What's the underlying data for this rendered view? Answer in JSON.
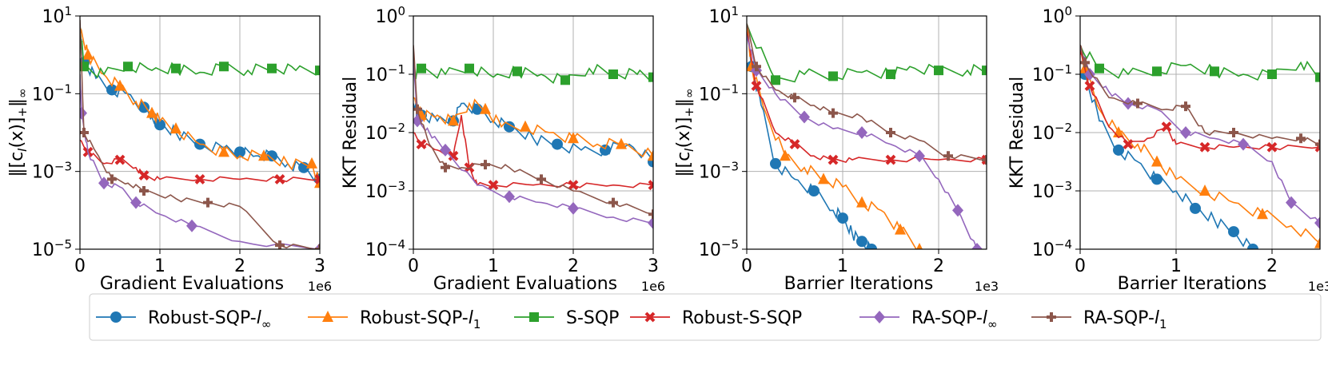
{
  "chart_data": [
    {
      "type": "line",
      "panel": 1,
      "xlabel": "Gradient Evaluations",
      "xmult": "1e6",
      "ylabel_parts": [
        "‖[c",
        "I",
        "(x)]",
        "+",
        "‖",
        "∞"
      ],
      "xlim": [
        0,
        3
      ],
      "ylim_exp": [
        -5,
        1
      ],
      "xticks": [
        "0",
        "1",
        "2",
        "3"
      ],
      "yticks": [
        {
          "exp": 1,
          "label": "10",
          "sup": "1"
        },
        {
          "exp": -1,
          "label": "10",
          "sup": "−1"
        },
        {
          "exp": -3,
          "label": "10",
          "sup": "−3"
        },
        {
          "exp": -5,
          "label": "10",
          "sup": "−5"
        }
      ],
      "series": [
        {
          "name": "Robust-SQP-l∞",
          "x": [
            0,
            0.05,
            0.2,
            0.4,
            0.6,
            0.8,
            0.9,
            1.0,
            1.2,
            1.5,
            1.8,
            2.0,
            2.2,
            2.4,
            2.6,
            2.8,
            3.0
          ],
          "y_exp": [
            0.5,
            -0.2,
            -0.6,
            -0.9,
            -1.0,
            -1.35,
            -1.6,
            -1.8,
            -2.0,
            -2.3,
            -2.4,
            -2.5,
            -2.6,
            -2.6,
            -2.8,
            -2.9,
            -3.2
          ]
        },
        {
          "name": "Robust-SQP-l1",
          "x": [
            0,
            0.1,
            0.3,
            0.5,
            0.7,
            0.9,
            1.0,
            1.2,
            1.5,
            1.8,
            2.0,
            2.3,
            2.6,
            2.9,
            3.0
          ],
          "y_exp": [
            0.7,
            0.0,
            -0.5,
            -0.8,
            -1.2,
            -1.5,
            -1.7,
            -1.9,
            -2.3,
            -2.5,
            -2.6,
            -2.6,
            -2.8,
            -2.8,
            -3.3
          ]
        },
        {
          "name": "S-SQP",
          "x": [
            0,
            0.05,
            0.3,
            0.6,
            0.9,
            1.2,
            1.5,
            1.8,
            2.1,
            2.4,
            2.7,
            3.0
          ],
          "y_exp": [
            0.8,
            -0.3,
            -0.5,
            -0.3,
            -0.4,
            -0.35,
            -0.45,
            -0.3,
            -0.4,
            -0.35,
            -0.4,
            -0.4
          ]
        },
        {
          "name": "Robust-S-SQP",
          "x": [
            0,
            0.1,
            0.3,
            0.5,
            0.7,
            0.8,
            1.0,
            1.5,
            2.0,
            2.5,
            3.0
          ],
          "y_exp": [
            -2.2,
            -2.5,
            -2.8,
            -2.7,
            -2.9,
            -3.1,
            -3.2,
            -3.2,
            -3.2,
            -3.2,
            -3.2
          ]
        },
        {
          "name": "RA-SQP-l∞",
          "x": [
            0,
            0.02,
            0.1,
            0.3,
            0.5,
            0.7,
            1.0,
            1.4,
            2.0,
            3.0
          ],
          "y_exp": [
            -0.5,
            -1.5,
            -2.5,
            -3.3,
            -3.4,
            -3.8,
            -4.1,
            -4.4,
            -4.8,
            -5.0
          ]
        },
        {
          "name": "RA-SQP-l1",
          "x": [
            0,
            0.05,
            0.2,
            0.4,
            0.6,
            0.8,
            1.2,
            1.6,
            2.0,
            2.5,
            3.0
          ],
          "y_exp": [
            0.9,
            -2.0,
            -2.5,
            -3.2,
            -3.3,
            -3.5,
            -3.7,
            -3.8,
            -3.9,
            -4.9,
            -5.0
          ]
        }
      ]
    },
    {
      "type": "line",
      "panel": 2,
      "xlabel": "Gradient Evaluations",
      "xmult": "1e6",
      "ylabel": "KKT Residual",
      "xlim": [
        0,
        3
      ],
      "ylim_exp": [
        -4,
        0
      ],
      "xticks": [
        "0",
        "1",
        "2",
        "3"
      ],
      "yticks": [
        {
          "exp": 0,
          "label": "10",
          "sup": "0"
        },
        {
          "exp": -1,
          "label": "10",
          "sup": "−1"
        },
        {
          "exp": -2,
          "label": "10",
          "sup": "−2"
        },
        {
          "exp": -3,
          "label": "10",
          "sup": "−3"
        },
        {
          "exp": -4,
          "label": "10",
          "sup": "−4"
        }
      ],
      "series": [
        {
          "name": "Robust-SQP-l∞",
          "x": [
            0,
            0.1,
            0.3,
            0.5,
            0.6,
            0.8,
            1.0,
            1.2,
            1.5,
            1.8,
            2.1,
            2.4,
            2.7,
            3.0
          ],
          "y_exp": [
            -1.5,
            -1.7,
            -1.8,
            -1.8,
            -1.5,
            -1.6,
            -1.8,
            -1.9,
            -2.1,
            -2.2,
            -2.3,
            -2.3,
            -2.2,
            -2.5
          ]
        },
        {
          "name": "Robust-SQP-l1",
          "x": [
            0,
            0.1,
            0.3,
            0.5,
            0.7,
            0.9,
            1.1,
            1.4,
            1.7,
            2.0,
            2.3,
            2.6,
            3.0
          ],
          "y_exp": [
            -1.4,
            -1.7,
            -1.7,
            -1.8,
            -1.5,
            -1.6,
            -1.9,
            -1.9,
            -2.0,
            -2.1,
            -2.2,
            -2.2,
            -2.4
          ]
        },
        {
          "name": "S-SQP",
          "x": [
            0,
            0.1,
            0.4,
            0.7,
            1.0,
            1.3,
            1.6,
            1.9,
            2.2,
            2.5,
            2.8,
            3.0
          ],
          "y_exp": [
            -1.0,
            -0.9,
            -1.0,
            -0.9,
            -1.05,
            -0.95,
            -1.0,
            -1.1,
            -0.9,
            -1.0,
            -1.0,
            -1.05
          ]
        },
        {
          "name": "Robust-S-SQP",
          "x": [
            0,
            0.1,
            0.3,
            0.5,
            0.6,
            0.7,
            0.8,
            1.0,
            1.5,
            2.0,
            2.5,
            3.0
          ],
          "y_exp": [
            -2.0,
            -2.2,
            -2.3,
            -2.4,
            -1.7,
            -2.6,
            -2.9,
            -2.9,
            -2.9,
            -2.9,
            -2.9,
            -2.9
          ]
        },
        {
          "name": "RA-SQP-l∞",
          "x": [
            0,
            0.05,
            0.2,
            0.4,
            0.8,
            1.2,
            1.6,
            2.0,
            2.5,
            3.0
          ],
          "y_exp": [
            -0.7,
            -1.8,
            -2.0,
            -2.3,
            -2.9,
            -3.1,
            -3.2,
            -3.3,
            -3.45,
            -3.55
          ]
        },
        {
          "name": "RA-SQP-l1",
          "x": [
            0,
            0.05,
            0.2,
            0.4,
            0.6,
            0.9,
            1.2,
            1.6,
            2.0,
            2.5,
            3.0
          ],
          "y_exp": [
            -0.5,
            -1.6,
            -2.2,
            -2.6,
            -2.6,
            -2.55,
            -2.6,
            -2.8,
            -3.0,
            -3.2,
            -3.4
          ]
        }
      ]
    },
    {
      "type": "line",
      "panel": 3,
      "xlabel": "Barrier Iterations",
      "xmult": "1e3",
      "ylabel_parts": [
        "‖[c",
        "I",
        "(x)]",
        "+",
        "‖",
        "∞"
      ],
      "xlim": [
        0,
        2.5
      ],
      "ylim_exp": [
        -5,
        1
      ],
      "xticks": [
        "0",
        "1",
        "2"
      ],
      "yticks": [
        {
          "exp": 1,
          "label": "10",
          "sup": "1"
        },
        {
          "exp": -1,
          "label": "10",
          "sup": "−1"
        },
        {
          "exp": -3,
          "label": "10",
          "sup": "−3"
        },
        {
          "exp": -5,
          "label": "10",
          "sup": "−5"
        }
      ],
      "series": [
        {
          "name": "Robust-SQP-l∞",
          "x": [
            0,
            0.05,
            0.15,
            0.3,
            0.5,
            0.7,
            0.9,
            1.0,
            1.1,
            1.2,
            1.3
          ],
          "y_exp": [
            0.7,
            -0.3,
            -1.3,
            -2.8,
            -3.2,
            -3.5,
            -4.0,
            -4.2,
            -4.6,
            -4.8,
            -5.0
          ]
        },
        {
          "name": "Robust-SQP-l1",
          "x": [
            0,
            0.05,
            0.2,
            0.4,
            0.6,
            0.8,
            1.0,
            1.2,
            1.4,
            1.6,
            1.8
          ],
          "y_exp": [
            0.8,
            -0.3,
            -1.5,
            -2.6,
            -2.9,
            -3.2,
            -3.4,
            -3.8,
            -4.0,
            -4.5,
            -5.0
          ]
        },
        {
          "name": "S-SQP",
          "x": [
            0,
            0.3,
            0.6,
            0.9,
            1.2,
            1.5,
            1.7,
            2.0,
            2.3,
            2.5
          ],
          "y_exp": [
            0.8,
            -0.65,
            -0.5,
            -0.55,
            -0.45,
            -0.5,
            -0.3,
            -0.4,
            -0.4,
            -0.4
          ]
        },
        {
          "name": "Robust-S-SQP",
          "x": [
            0,
            0.1,
            0.3,
            0.5,
            0.7,
            0.9,
            1.1,
            1.5,
            2.0,
            2.5
          ],
          "y_exp": [
            0.6,
            -0.8,
            -2.0,
            -2.3,
            -2.6,
            -2.7,
            -2.7,
            -2.7,
            -2.7,
            -2.7
          ]
        },
        {
          "name": "RA-SQP-l∞",
          "x": [
            0,
            0.1,
            0.3,
            0.6,
            0.9,
            1.2,
            1.5,
            1.8,
            2.0,
            2.2,
            2.4
          ],
          "y_exp": [
            0.5,
            -0.4,
            -1.0,
            -1.6,
            -1.9,
            -2.0,
            -2.3,
            -2.6,
            -3.2,
            -4.0,
            -5.0
          ]
        },
        {
          "name": "RA-SQP-l1",
          "x": [
            0,
            0.1,
            0.3,
            0.5,
            0.7,
            0.9,
            1.2,
            1.5,
            1.8,
            2.1,
            2.5
          ],
          "y_exp": [
            0.8,
            -0.3,
            -0.9,
            -1.1,
            -1.3,
            -1.5,
            -1.6,
            -2.0,
            -2.2,
            -2.6,
            -2.7
          ]
        }
      ]
    },
    {
      "type": "line",
      "panel": 4,
      "xlabel": "Barrier Iterations",
      "xmult": "1e3",
      "ylabel": "KKT Residual",
      "xlim": [
        0,
        2.5
      ],
      "ylim_exp": [
        -4,
        0
      ],
      "xticks": [
        "0",
        "1",
        "2"
      ],
      "yticks": [
        {
          "exp": 0,
          "label": "10",
          "sup": "0"
        },
        {
          "exp": -1,
          "label": "10",
          "sup": "−1"
        },
        {
          "exp": -2,
          "label": "10",
          "sup": "−2"
        },
        {
          "exp": -3,
          "label": "10",
          "sup": "−3"
        },
        {
          "exp": -4,
          "label": "10",
          "sup": "−4"
        }
      ],
      "series": [
        {
          "name": "Robust-SQP-l∞",
          "x": [
            0,
            0.05,
            0.2,
            0.4,
            0.6,
            0.8,
            1.0,
            1.2,
            1.4,
            1.6,
            1.8
          ],
          "y_exp": [
            -0.5,
            -1.0,
            -1.8,
            -2.3,
            -2.5,
            -2.8,
            -3.0,
            -3.3,
            -3.5,
            -3.7,
            -4.0
          ]
        },
        {
          "name": "Robust-SQP-l1",
          "x": [
            0,
            0.05,
            0.2,
            0.4,
            0.6,
            0.8,
            1.0,
            1.3,
            1.6,
            1.9,
            2.2,
            2.5
          ],
          "y_exp": [
            -0.5,
            -0.9,
            -1.6,
            -2.0,
            -2.2,
            -2.5,
            -2.8,
            -3.0,
            -3.2,
            -3.4,
            -3.6,
            -3.9
          ]
        },
        {
          "name": "S-SQP",
          "x": [
            0,
            0.2,
            0.5,
            0.8,
            1.1,
            1.4,
            1.7,
            2.0,
            2.3,
            2.5
          ],
          "y_exp": [
            -0.5,
            -0.9,
            -1.0,
            -0.95,
            -0.85,
            -0.95,
            -1.0,
            -1.0,
            -0.8,
            -1.05
          ]
        },
        {
          "name": "Robust-S-SQP",
          "x": [
            0,
            0.1,
            0.3,
            0.5,
            0.7,
            0.9,
            1.0,
            1.3,
            1.6,
            2.0,
            2.5
          ],
          "y_exp": [
            -0.6,
            -1.2,
            -1.9,
            -2.2,
            -2.1,
            -1.9,
            -2.2,
            -2.25,
            -2.25,
            -2.25,
            -2.25
          ]
        },
        {
          "name": "RA-SQP-l∞",
          "x": [
            0,
            0.1,
            0.3,
            0.5,
            0.8,
            1.1,
            1.4,
            1.7,
            2.0,
            2.2,
            2.5
          ],
          "y_exp": [
            -0.5,
            -1.0,
            -1.3,
            -1.5,
            -1.6,
            -2.0,
            -2.1,
            -2.2,
            -2.5,
            -3.2,
            -3.55
          ]
        },
        {
          "name": "RA-SQP-l1",
          "x": [
            0,
            0.05,
            0.3,
            0.6,
            0.9,
            1.1,
            1.3,
            1.6,
            2.0,
            2.3,
            2.5
          ],
          "y_exp": [
            -0.5,
            -0.8,
            -1.4,
            -1.5,
            -1.6,
            -1.55,
            -2.0,
            -2.0,
            -2.1,
            -2.1,
            -2.2
          ]
        }
      ]
    }
  ],
  "legend": [
    {
      "base": "Robust-SQP-",
      "sub": "l",
      "subsub": "∞",
      "color": "#1f77b4",
      "marker": "circle"
    },
    {
      "base": "Robust-SQP-",
      "sub": "l",
      "subsub": "1",
      "color": "#ff7f0e",
      "marker": "triangle"
    },
    {
      "base": "S-SQP",
      "sub": "",
      "subsub": "",
      "color": "#2ca02c",
      "marker": "square"
    },
    {
      "base": "Robust-S-SQP",
      "sub": "",
      "subsub": "",
      "color": "#d62728",
      "marker": "x"
    },
    {
      "base": "RA-SQP-",
      "sub": "l",
      "subsub": "∞",
      "color": "#9467bd",
      "marker": "diamond"
    },
    {
      "base": "RA-SQP-",
      "sub": "l",
      "subsub": "1",
      "color": "#8c564b",
      "marker": "plus"
    }
  ]
}
